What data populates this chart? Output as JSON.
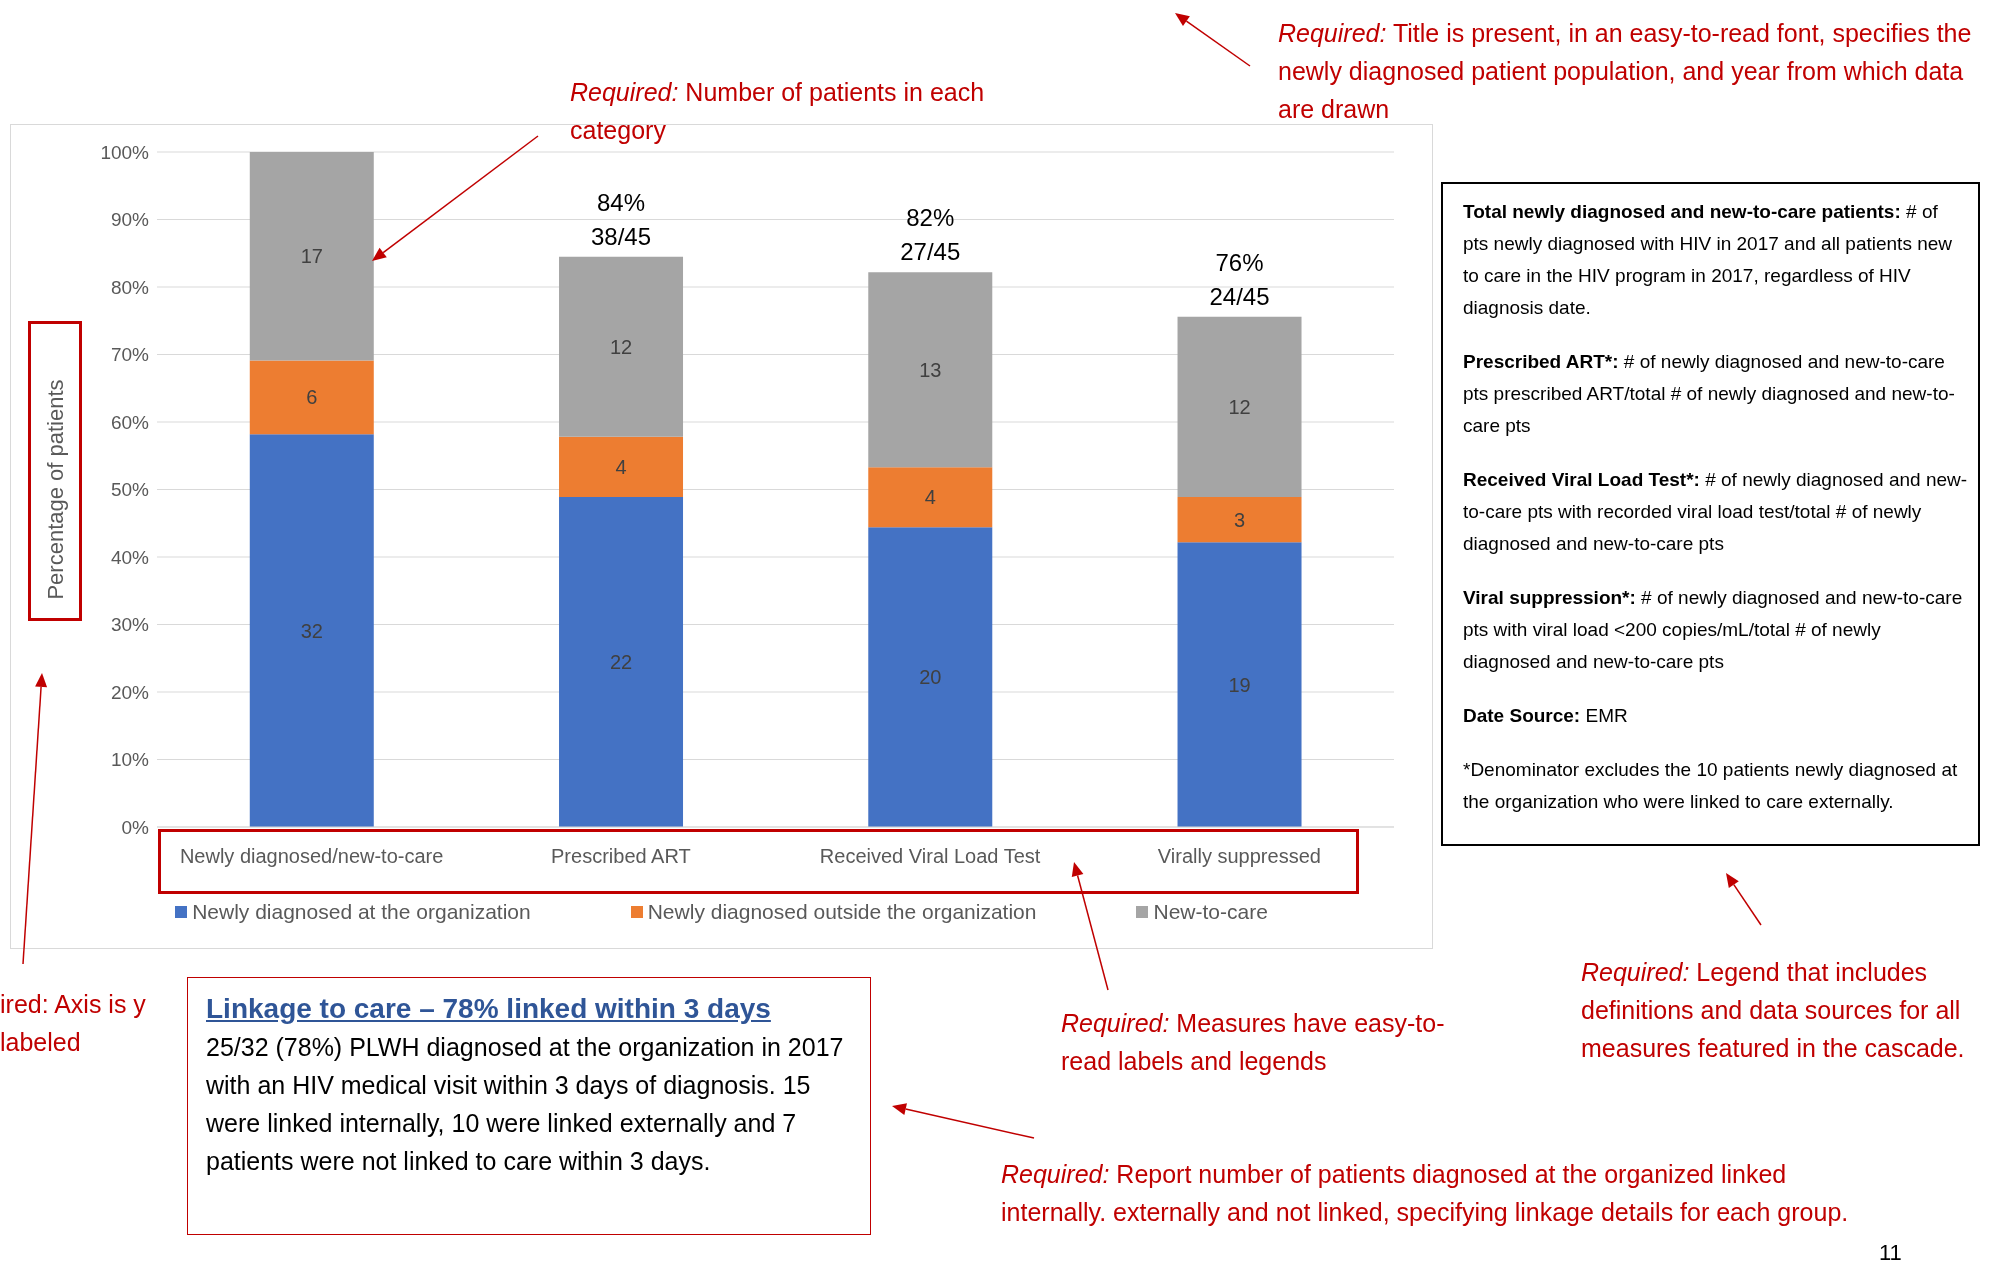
{
  "chart_data": {
    "type": "bar",
    "stacked": true,
    "ylabel": "Percentage of patients",
    "categories": [
      "Newly diagnosed/new-to-care",
      "Prescribed ART",
      "Received Viral Load Test",
      "Virally suppressed"
    ],
    "series": [
      {
        "name": "Newly diagnosed at the organization",
        "color": "#4472c4",
        "values": [
          58.2,
          48.9,
          44.4,
          42.2
        ]
      },
      {
        "name": "Newly diagnosed outside the organization",
        "color": "#ed7d31",
        "values": [
          10.9,
          8.9,
          8.9,
          6.7
        ]
      },
      {
        "name": "New-to-care",
        "color": "#a5a5a5",
        "values": [
          30.9,
          26.7,
          28.9,
          26.7
        ]
      }
    ],
    "totals": [
      null,
      "84%\n38/45",
      "82%\n27/45",
      "76%\n24/45"
    ],
    "ylim": [
      0,
      100
    ],
    "yticks": [
      {
        "value": 0,
        "label": "0%"
      },
      {
        "value": 10,
        "label": "10%"
      },
      {
        "value": 20,
        "label": "20%"
      },
      {
        "value": 30,
        "label": "30%"
      },
      {
        "value": 40,
        "label": "40%"
      },
      {
        "value": 50,
        "label": "50%"
      },
      {
        "value": 60,
        "label": "60%"
      },
      {
        "value": 70,
        "label": "70%"
      },
      {
        "value": 80,
        "label": "80%"
      },
      {
        "value": 90,
        "label": "90%"
      },
      {
        "value": 100,
        "label": "100%"
      }
    ],
    "grid": "y",
    "legend": "bottom",
    "annotations": [
      "Required: Title is present, in an easy-to-read font, specifies the newly diagnosed patient population, and year from which data are drawn",
      "Required: Number of patients in each category",
      "Total newly diagnosed and new-to-care patients: # of pts newly diagnosed with HIV in 2017 and all patients new to care in the HIV program in 2017, regardless of HIV diagnosis date.",
      "Prescribed ART*: # of newly diagnosed and new-to-care pts prescribed ART/total # of newly diagnosed and new-to-care pts",
      "Received Viral Load Test*: # of newly diagnosed and new-to-care pts with recorded viral load test/total # of newly diagnosed and new-to-care pts",
      "Viral suppression*: # of newly diagnosed and new-to-care pts with viral load <200 copies/mL/total # of newly diagnosed and new-to-care pts",
      "Date Source: EMR",
      "*Denominator excludes the 10 patients newly diagnosed at the organization who were linked to care externally.",
      "ired: Axis is y labeled",
      "Linkage to care – 78% linked within 3 days",
      "25/32 (78%) PLWH diagnosed at the organization in 2017 with an HIV medical visit within 3 days of diagnosis. 15 were linked internally, 10 were linked externally and 7 patients were not linked to care within 3 days.",
      "Required: Measures have easy-to-read labels and legends",
      "Required: Legend that includes definitions and data sources for all measures featured in the cascade.",
      "Required: Report number of patients diagnosed at the organized linked internally. externally and not linked, specifying linkage details for each group.",
      "11",
      "32",
      "22",
      "20",
      "19",
      "6",
      "4",
      "4",
      "3",
      "17",
      "12",
      "13",
      "12"
    ]
  }
}
